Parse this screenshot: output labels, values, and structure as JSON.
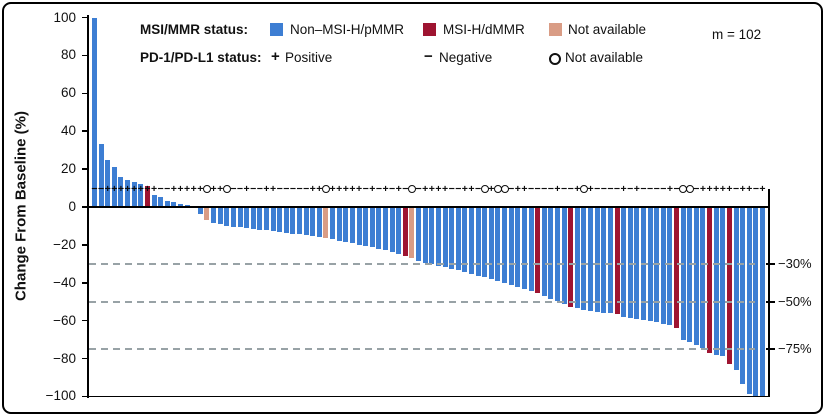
{
  "header": {
    "m_label": "m = 102"
  },
  "legend": {
    "msi_label": "MSI/MMR status:",
    "pd_label": "PD-1/PD-L1 status:",
    "msi_items": [
      {
        "label": "Non–MSI-H/pMMR",
        "color": "#3d7ed3"
      },
      {
        "label": "MSI-H/dMMR",
        "color": "#9e1431"
      },
      {
        "label": "Not available",
        "color": "#d99c85"
      }
    ],
    "pd_items": [
      {
        "symbol": "+",
        "label": "Positive"
      },
      {
        "symbol": "−",
        "label": "Negative"
      },
      {
        "symbol": "O",
        "label": "Not available"
      }
    ]
  },
  "chart_data": {
    "type": "bar",
    "title": "",
    "ylabel": "Change From Baseline (%)",
    "xlabel": "",
    "ylim": [
      -100,
      100
    ],
    "yticks": [
      100,
      80,
      60,
      40,
      20,
      0,
      -20,
      -40,
      -60,
      -80,
      -100
    ],
    "grid": false,
    "legend_position": "top",
    "n_label": "m = 102",
    "reference_lines": [
      {
        "value": -30,
        "label": "−30%"
      },
      {
        "value": -50,
        "label": "−50%"
      },
      {
        "value": -75,
        "label": "−75%"
      }
    ],
    "colors": {
      "B": "#3d7ed3",
      "R": "#9e1431",
      "N": "#d99c85"
    },
    "color_meaning": {
      "B": "Non–MSI-H/pMMR",
      "R": "MSI-H/dMMR",
      "N": "Not available"
    },
    "marker_meaning": {
      "+": "PD-1/PD-L1 positive",
      "-": "PD-1/PD-L1 negative",
      "o": "PD-1/PD-L1 not available"
    },
    "values": [
      100,
      33,
      25,
      21,
      16,
      14.5,
      13,
      12,
      11,
      6.5,
      5.5,
      3,
      2.5,
      1.5,
      1,
      0.5,
      -3.5,
      -7,
      -8.5,
      -9.2,
      -9.8,
      -10.3,
      -10.8,
      -11.2,
      -11.6,
      -12,
      -12.4,
      -12.8,
      -13.2,
      -13.6,
      -14,
      -14.4,
      -14.8,
      -15.2,
      -15.6,
      -16.2,
      -17,
      -17.8,
      -18.5,
      -19.2,
      -19.9,
      -20.6,
      -21.3,
      -22,
      -22.8,
      -23.6,
      -24.6,
      -25.9,
      -27,
      -28.5,
      -29.5,
      -30.3,
      -31,
      -31.8,
      -32.5,
      -33.3,
      -34.2,
      -35.2,
      -36.2,
      -37.2,
      -38.2,
      -39.2,
      -40.2,
      -41.2,
      -42.3,
      -43.4,
      -44.5,
      -45.5,
      -47,
      -48.3,
      -49.8,
      -51.2,
      -52.6,
      -53.5,
      -54.3,
      -55,
      -55.4,
      -55.8,
      -56.1,
      -56.4,
      -57.8,
      -58.4,
      -59,
      -59.6,
      -60.2,
      -60.9,
      -61.6,
      -62.5,
      -64,
      -70,
      -71.5,
      -73,
      -74.5,
      -77.2,
      -78.1,
      -78.7,
      -83,
      -86,
      -93.5,
      -98.8,
      -100,
      -100
    ],
    "bar_colors": [
      "B",
      "B",
      "B",
      "B",
      "B",
      "B",
      "B",
      "B",
      "R",
      "B",
      "B",
      "B",
      "B",
      "B",
      "B",
      "B",
      "B",
      "N",
      "B",
      "B",
      "B",
      "B",
      "B",
      "B",
      "B",
      "B",
      "B",
      "B",
      "B",
      "B",
      "B",
      "B",
      "B",
      "B",
      "B",
      "N",
      "B",
      "B",
      "B",
      "B",
      "B",
      "B",
      "B",
      "B",
      "B",
      "B",
      "B",
      "R",
      "N",
      "B",
      "B",
      "B",
      "B",
      "B",
      "B",
      "B",
      "B",
      "B",
      "B",
      "B",
      "B",
      "B",
      "B",
      "B",
      "B",
      "B",
      "B",
      "R",
      "B",
      "B",
      "B",
      "B",
      "R",
      "B",
      "B",
      "B",
      "B",
      "B",
      "B",
      "R",
      "B",
      "B",
      "B",
      "B",
      "B",
      "B",
      "B",
      "B",
      "R",
      "B",
      "B",
      "B",
      "B",
      "R",
      "B",
      "B",
      "R",
      "B",
      "B",
      "B",
      "B",
      "B"
    ],
    "pd_markers": [
      "-",
      "-",
      "+",
      "+",
      "+",
      "+",
      "+",
      "+",
      "+",
      "+",
      "-",
      "-",
      "+",
      "+",
      "+",
      "+",
      "+",
      "o",
      "+",
      "+",
      "o",
      "-",
      "-",
      "+",
      "-",
      "-",
      "+",
      "+",
      "-",
      "-",
      "-",
      "-",
      "-",
      "+",
      "+",
      "o",
      "+",
      "+",
      "+",
      "+",
      "+",
      "-",
      "+",
      "-",
      "+",
      "-",
      "+",
      "-",
      "o",
      "-",
      "+",
      "+",
      "+",
      "+",
      "-",
      "-",
      "+",
      "+",
      "-",
      "o",
      "+",
      "o",
      "o",
      "-",
      "+",
      "+",
      "-",
      "-",
      "-",
      "-",
      "+",
      "-",
      "-",
      "+",
      "o",
      "+",
      "-",
      "-",
      "-",
      "-",
      "+",
      "-",
      "+",
      "-",
      "-",
      "-",
      "-",
      "+",
      "-",
      "o",
      "o",
      "-",
      "+",
      "+",
      "+",
      "+",
      "+",
      "-",
      "+",
      "+",
      "-",
      "+"
    ]
  }
}
